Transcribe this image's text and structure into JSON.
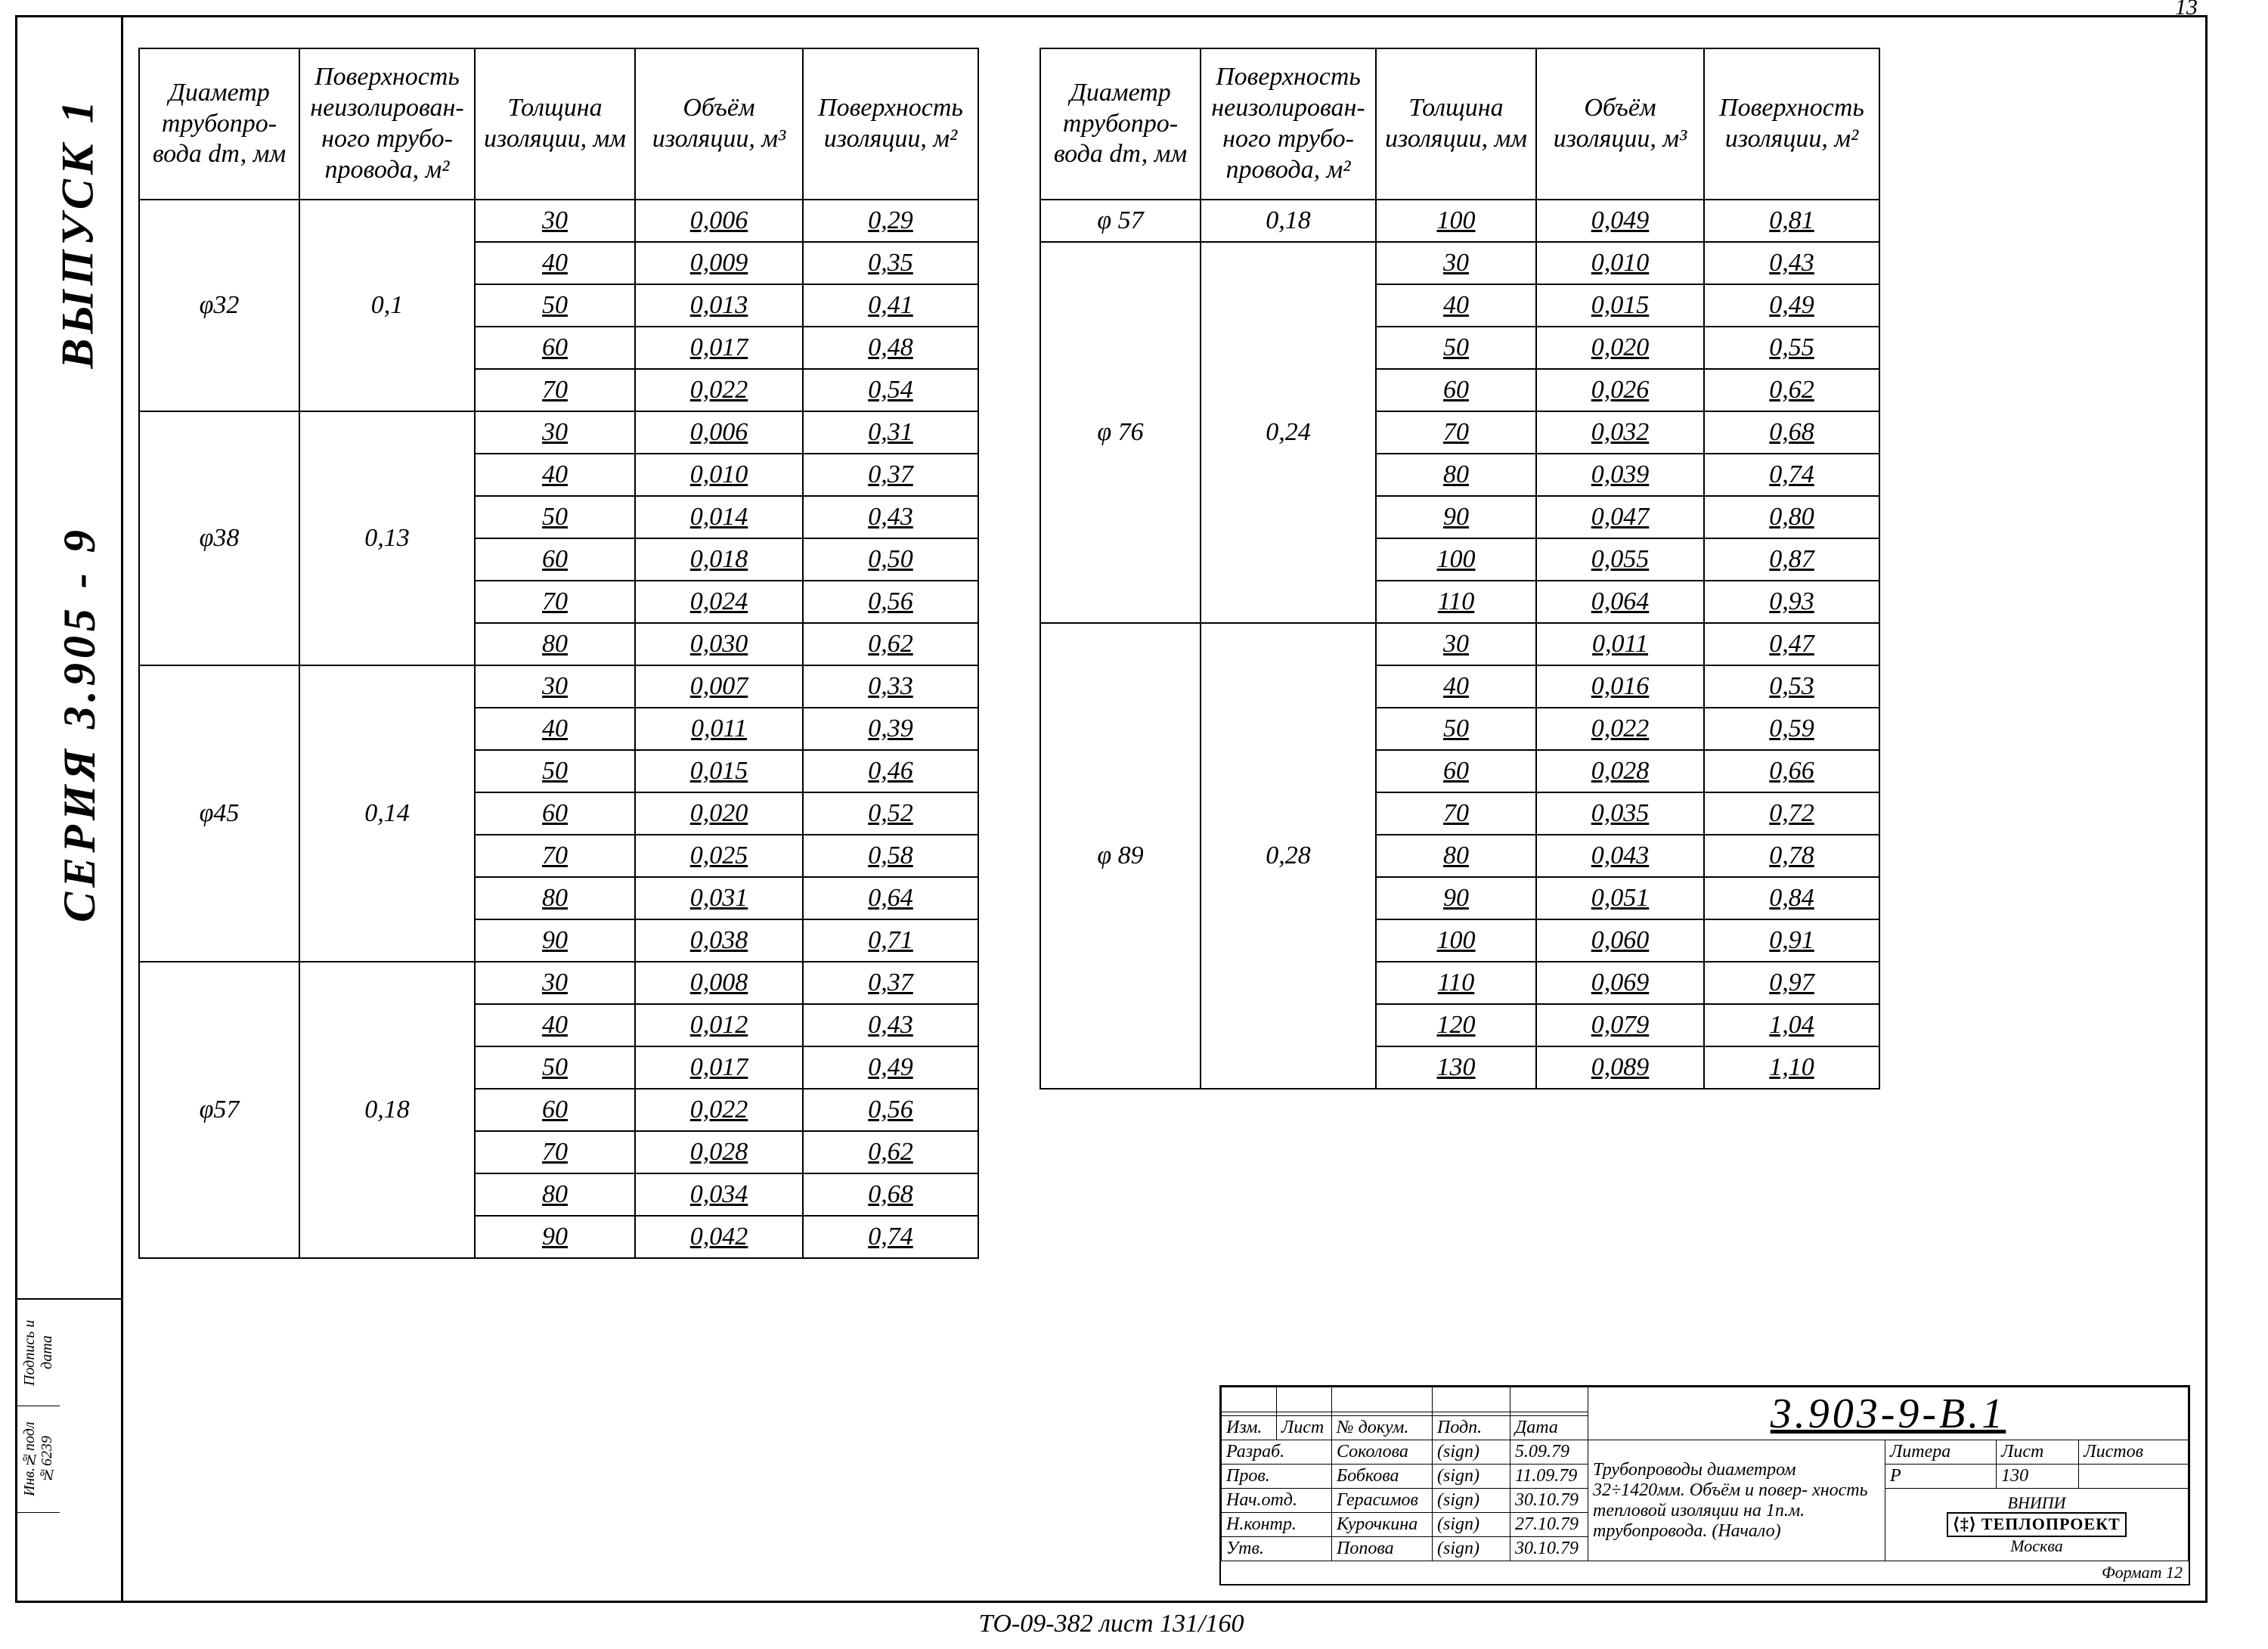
{
  "page_number": "13",
  "sidebar": {
    "series": "СЕРИЯ  3.905 - 9",
    "issue": "ВЫПУСК 1",
    "inv_label": "Инв.№подл",
    "inv_value": "№6239",
    "sign_label": "Подпись и дата"
  },
  "headers": {
    "diam": "Диаметр трубопро- вода dт, мм",
    "surf_bare": "Поверхность неизолирован- ного трубо- провода, м²",
    "thick": "Толщина изоляции, мм",
    "vol": "Объём изоляции, м³",
    "surf_ins": "Поверхность изоляции, м²"
  },
  "table_left": [
    {
      "diam": "φ32",
      "surf": "0,1",
      "rows": [
        [
          "30",
          "0,006",
          "0,29"
        ],
        [
          "40",
          "0,009",
          "0,35"
        ],
        [
          "50",
          "0,013",
          "0,41"
        ],
        [
          "60",
          "0,017",
          "0,48"
        ],
        [
          "70",
          "0,022",
          "0,54"
        ]
      ]
    },
    {
      "diam": "φ38",
      "surf": "0,13",
      "rows": [
        [
          "30",
          "0,006",
          "0,31"
        ],
        [
          "40",
          "0,010",
          "0,37"
        ],
        [
          "50",
          "0,014",
          "0,43"
        ],
        [
          "60",
          "0,018",
          "0,50"
        ],
        [
          "70",
          "0,024",
          "0,56"
        ],
        [
          "80",
          "0,030",
          "0,62"
        ]
      ]
    },
    {
      "diam": "φ45",
      "surf": "0,14",
      "rows": [
        [
          "30",
          "0,007",
          "0,33"
        ],
        [
          "40",
          "0,011",
          "0,39"
        ],
        [
          "50",
          "0,015",
          "0,46"
        ],
        [
          "60",
          "0,020",
          "0,52"
        ],
        [
          "70",
          "0,025",
          "0,58"
        ],
        [
          "80",
          "0,031",
          "0,64"
        ],
        [
          "90",
          "0,038",
          "0,71"
        ]
      ]
    },
    {
      "diam": "φ57",
      "surf": "0,18",
      "rows": [
        [
          "30",
          "0,008",
          "0,37"
        ],
        [
          "40",
          "0,012",
          "0,43"
        ],
        [
          "50",
          "0,017",
          "0,49"
        ],
        [
          "60",
          "0,022",
          "0,56"
        ],
        [
          "70",
          "0,028",
          "0,62"
        ],
        [
          "80",
          "0,034",
          "0,68"
        ],
        [
          "90",
          "0,042",
          "0,74"
        ]
      ]
    }
  ],
  "table_right": [
    {
      "diam": "φ 57",
      "surf": "0,18",
      "rows": [
        [
          "100",
          "0,049",
          "0,81"
        ]
      ]
    },
    {
      "diam": "φ 76",
      "surf": "0,24",
      "rows": [
        [
          "30",
          "0,010",
          "0,43"
        ],
        [
          "40",
          "0,015",
          "0,49"
        ],
        [
          "50",
          "0,020",
          "0,55"
        ],
        [
          "60",
          "0,026",
          "0,62"
        ],
        [
          "70",
          "0,032",
          "0,68"
        ],
        [
          "80",
          "0,039",
          "0,74"
        ],
        [
          "90",
          "0,047",
          "0,80"
        ],
        [
          "100",
          "0,055",
          "0,87"
        ],
        [
          "110",
          "0,064",
          "0,93"
        ]
      ]
    },
    {
      "diam": "φ 89",
      "surf": "0,28",
      "rows": [
        [
          "30",
          "0,011",
          "0,47"
        ],
        [
          "40",
          "0,016",
          "0,53"
        ],
        [
          "50",
          "0,022",
          "0,59"
        ],
        [
          "60",
          "0,028",
          "0,66"
        ],
        [
          "70",
          "0,035",
          "0,72"
        ],
        [
          "80",
          "0,043",
          "0,78"
        ],
        [
          "90",
          "0,051",
          "0,84"
        ],
        [
          "100",
          "0,060",
          "0,91"
        ],
        [
          "110",
          "0,069",
          "0,97"
        ],
        [
          "120",
          "0,079",
          "1,04"
        ],
        [
          "130",
          "0,089",
          "1,10"
        ]
      ]
    }
  ],
  "title_block": {
    "code": "3.903-9-В.1",
    "cols_small": [
      "Изм.",
      "Лист",
      "№ докум.",
      "Подп.",
      "Дата"
    ],
    "roles": [
      [
        "Разраб.",
        "Соколова",
        "(sign)",
        "5.09.79"
      ],
      [
        "Пров.",
        "Бобкова",
        "(sign)",
        "11.09.79"
      ],
      [
        "Нач.отд.",
        "Герасимов",
        "(sign)",
        "30.10.79"
      ],
      [
        "Н.контр.",
        "Курочкина",
        "(sign)",
        "27.10.79"
      ],
      [
        "Утв.",
        "Попова",
        "(sign)",
        "30.10.79"
      ]
    ],
    "desc": "Трубопроводы диаметром 32÷1420мм. Объём и повер- хность тепловой изоляции на 1п.м. трубопровода. (Начало)",
    "litera": "Литера",
    "list": "Лист",
    "listov": "Листов",
    "litera_val": "Р",
    "list_val": "130",
    "org_top": "ВНИПИ",
    "org": "ТЕПЛОПРОЕКТ",
    "city": "Москва",
    "format": "Формат 12"
  },
  "footer": "ТО-09-382  лист 131/160"
}
